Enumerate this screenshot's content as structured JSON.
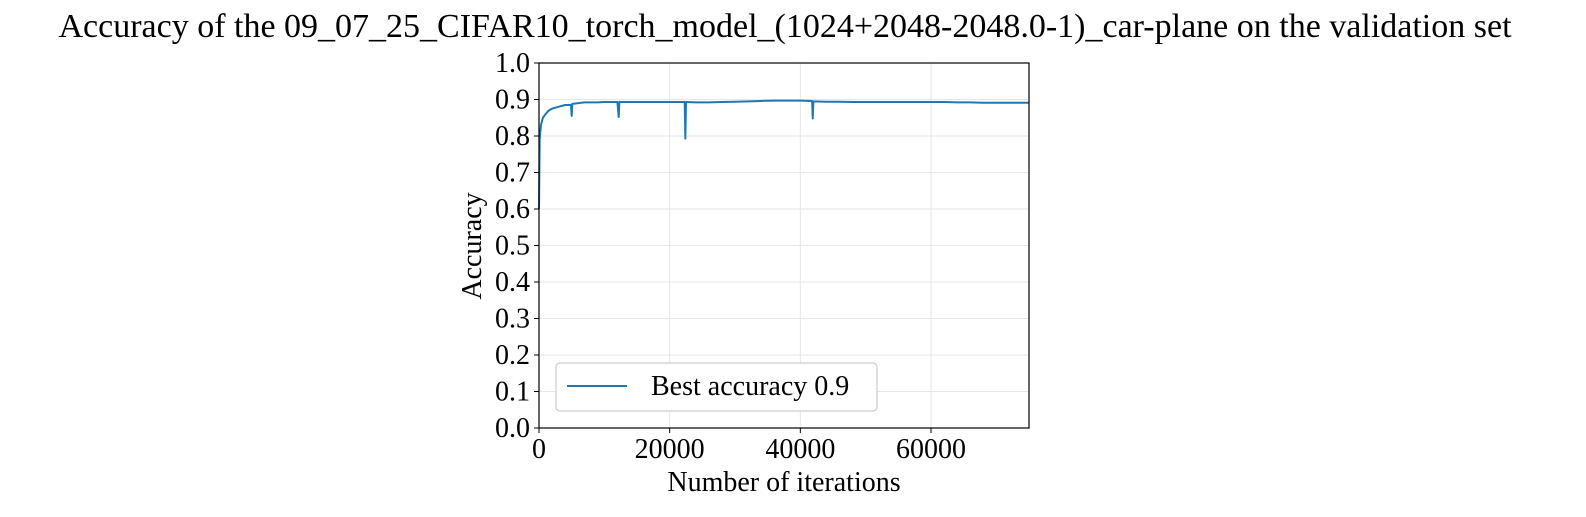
{
  "chart_data": {
    "type": "line",
    "title": "Accuracy of the 09_07_25_CIFAR10_torch_model_(1024+2048-2048.0-1)_car-plane on the validation set",
    "xlabel": "Number of iterations",
    "ylabel": "Accuracy",
    "xlim": [
      0,
      75000
    ],
    "ylim": [
      0.0,
      1.0
    ],
    "x_ticks": [
      0,
      20000,
      40000,
      60000
    ],
    "x_tick_labels": [
      "0",
      "20000",
      "40000",
      "60000"
    ],
    "y_ticks": [
      0.0,
      0.1,
      0.2,
      0.3,
      0.4,
      0.5,
      0.6,
      0.7,
      0.8,
      0.9,
      1.0
    ],
    "y_tick_labels": [
      "0.0",
      "0.1",
      "0.2",
      "0.3",
      "0.4",
      "0.5",
      "0.6",
      "0.7",
      "0.8",
      "0.9",
      "1.0"
    ],
    "grid": true,
    "legend_position": "lower-left",
    "line_color": "#1f77b4",
    "series": [
      {
        "name": "Best accuracy 0.9",
        "x": [
          0,
          100,
          300,
          600,
          1000,
          1500,
          2000,
          3000,
          4000,
          4900,
          5000,
          5100,
          6000,
          7000,
          8000,
          9000,
          10000,
          11000,
          12000,
          12200,
          12300,
          13000,
          15000,
          17000,
          19000,
          21000,
          22300,
          22400,
          22500,
          24000,
          26000,
          28000,
          30000,
          32000,
          34000,
          36000,
          38000,
          40000,
          41800,
          41900,
          42000,
          44000,
          46000,
          48000,
          50000,
          52000,
          54000,
          56000,
          58000,
          60000,
          62000,
          64000,
          66000,
          68000,
          70000,
          72000,
          75000
        ],
        "y": [
          0.6,
          0.79,
          0.83,
          0.85,
          0.86,
          0.87,
          0.875,
          0.88,
          0.885,
          0.885,
          0.855,
          0.888,
          0.89,
          0.892,
          0.892,
          0.892,
          0.893,
          0.893,
          0.893,
          0.852,
          0.893,
          0.893,
          0.893,
          0.893,
          0.893,
          0.893,
          0.893,
          0.793,
          0.893,
          0.892,
          0.892,
          0.893,
          0.894,
          0.895,
          0.896,
          0.897,
          0.897,
          0.897,
          0.896,
          0.848,
          0.895,
          0.894,
          0.894,
          0.893,
          0.893,
          0.893,
          0.893,
          0.893,
          0.893,
          0.893,
          0.893,
          0.892,
          0.892,
          0.891,
          0.891,
          0.891,
          0.891
        ]
      }
    ]
  }
}
